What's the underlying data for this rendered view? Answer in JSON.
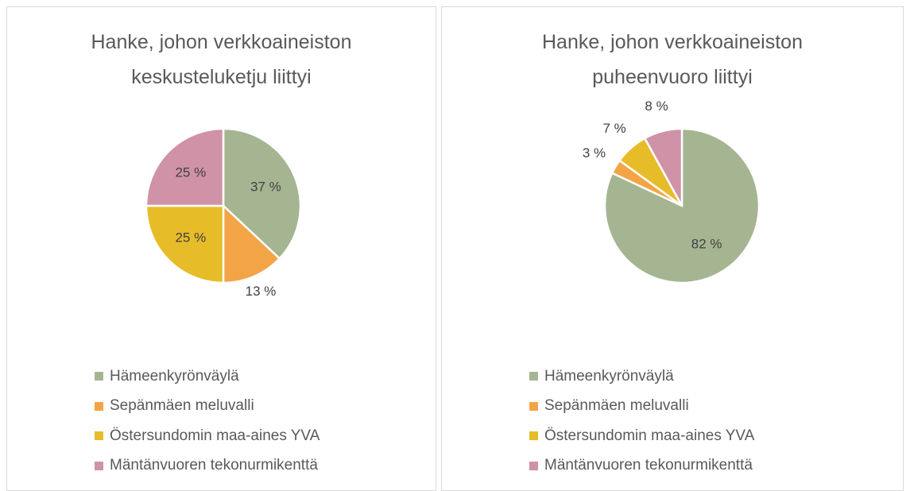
{
  "chart_data": [
    {
      "type": "pie",
      "title": "Hanke, johon verkkoaineiston keskusteluketju liittyi",
      "categories": [
        "Hämeenkyrönväylä",
        "Sepänmäen meluvalli",
        "Östersundomin maa-aines YVA",
        "Mäntänvuoren tekonurmikenttä"
      ],
      "values": [
        37,
        13,
        25,
        25
      ],
      "value_labels": [
        "37 %",
        "13 %",
        "25 %",
        "25 %"
      ],
      "colors": [
        "#a5b592",
        "#f3a447",
        "#e7bc29",
        "#d092a7"
      ],
      "legend": "bottom"
    },
    {
      "type": "pie",
      "title": "Hanke, johon verkkoaineiston puheenvuoro liittyi",
      "categories": [
        "Hämeenkyrönväylä",
        "Sepänmäen meluvalli",
        "Östersundomin maa-aines YVA",
        "Mäntänvuoren tekonurmikenttä"
      ],
      "values": [
        82,
        3,
        7,
        8
      ],
      "value_labels": [
        "82 %",
        "3 %",
        "7 %",
        "8 %"
      ],
      "colors": [
        "#a5b592",
        "#f3a447",
        "#e7bc29",
        "#d092a7"
      ],
      "legend": "bottom"
    }
  ]
}
